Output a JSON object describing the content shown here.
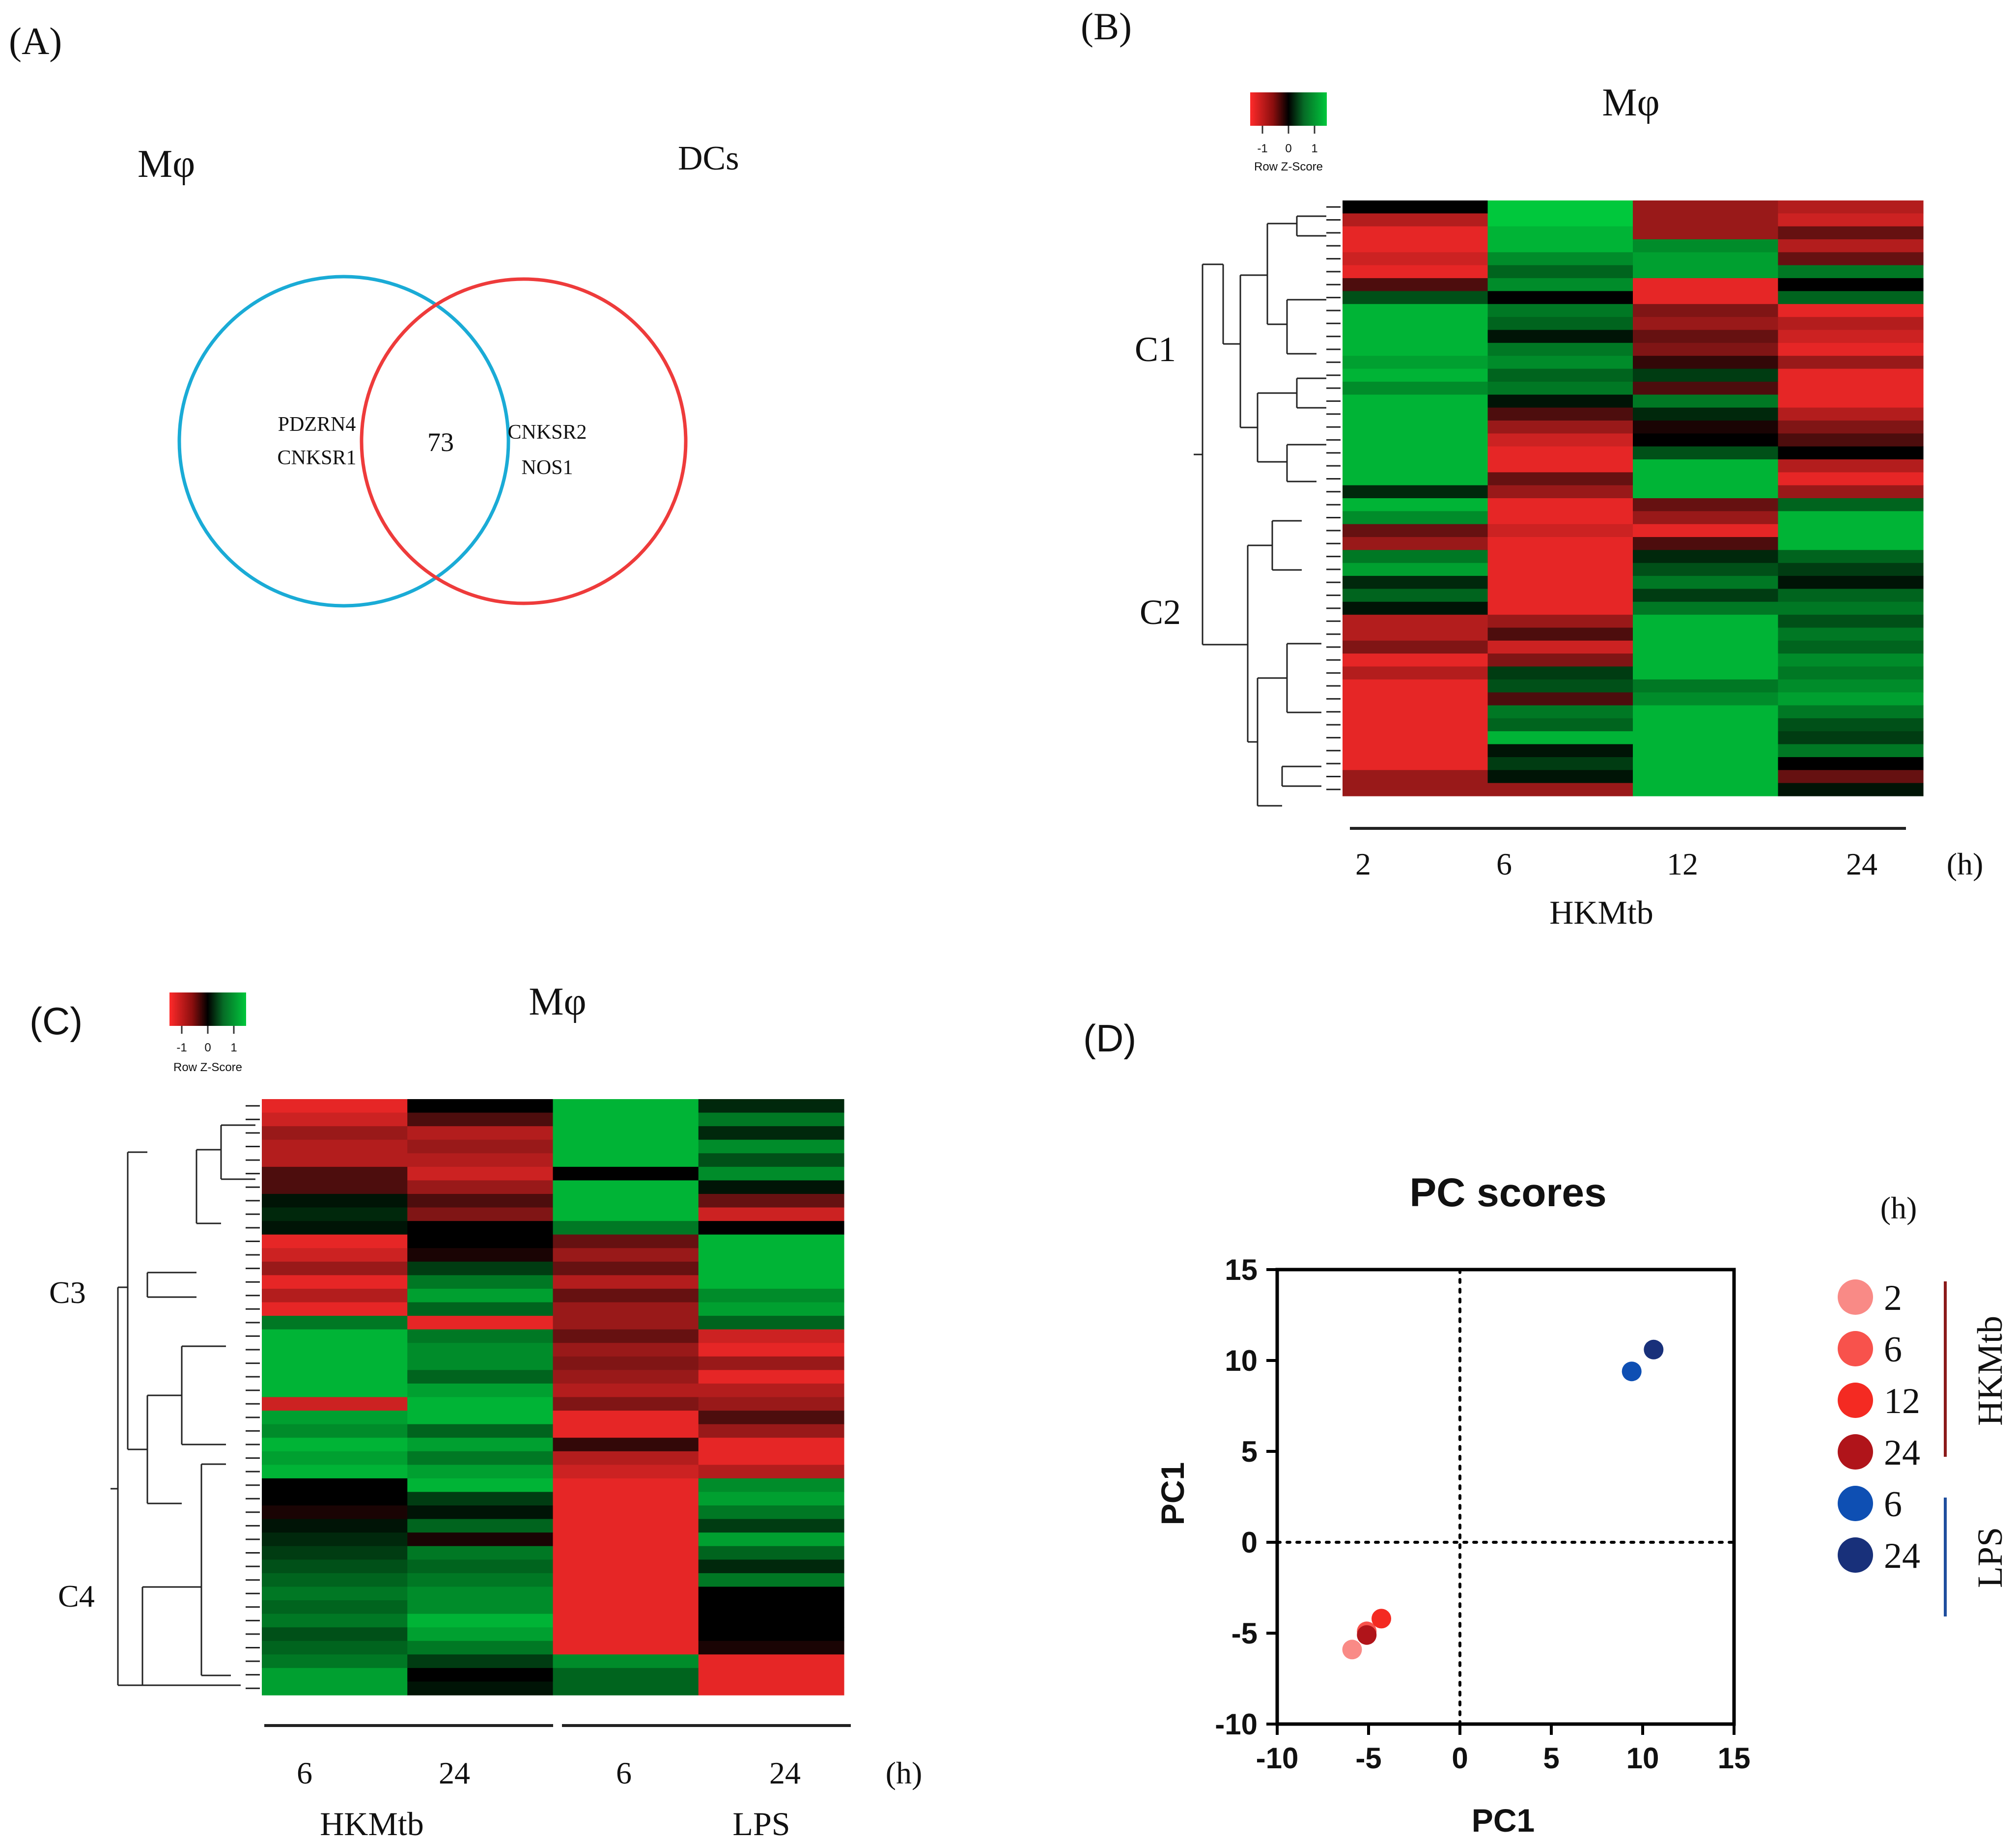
{
  "colors": {
    "low": "#ff2a2a",
    "mid": "#000000",
    "high": "#00c83c",
    "venn_left": "#1aabd6",
    "venn_right": "#ee3b3b",
    "hkmtb_bar": "#8b1a1a",
    "lps_bar": "#1f4e9e"
  },
  "panel_labels": {
    "a": "(A)",
    "b": "(B)",
    "c": "(C)",
    "d": "(D)"
  },
  "venn": {
    "left_title": "Mφ",
    "right_title": "DCs",
    "left_genes": [
      "PDZRN4",
      "CNKSR1"
    ],
    "overlap": "73",
    "right_genes": [
      "CNKSR2",
      "NOS1"
    ]
  },
  "color_key": {
    "ticks": [
      "-1",
      "0",
      "1"
    ],
    "label": "Row Z-Score"
  },
  "heatmap_b": {
    "title": "Mφ",
    "clusters": [
      "C1",
      "C2"
    ],
    "columns": [
      "2",
      "6",
      "12",
      "24"
    ],
    "unit": "(h)",
    "group": "HKMtb",
    "rows": [
      [
        0,
        1,
        -0.6,
        -0.7
      ],
      [
        -0.7,
        1,
        -0.6,
        -0.8
      ],
      [
        -0.9,
        0.9,
        -0.6,
        -0.4
      ],
      [
        -0.9,
        0.9,
        0.7,
        -0.7
      ],
      [
        -0.8,
        0.7,
        0.8,
        -0.4
      ],
      [
        -0.9,
        0.5,
        0.8,
        0.6
      ],
      [
        -0.3,
        0.7,
        -0.9,
        0
      ],
      [
        0.4,
        0,
        -0.9,
        0.5
      ],
      [
        0.9,
        0.6,
        -0.5,
        -0.9
      ],
      [
        0.9,
        0.5,
        -0.6,
        -0.7
      ],
      [
        0.9,
        0.1,
        -0.4,
        -0.8
      ],
      [
        0.9,
        0.6,
        -0.5,
        -0.9
      ],
      [
        0.8,
        0.7,
        -0.2,
        -0.6
      ],
      [
        0.9,
        0.5,
        0.3,
        -0.9
      ],
      [
        0.7,
        0.6,
        -0.3,
        -0.9
      ],
      [
        0.9,
        0.1,
        0.6,
        -0.9
      ],
      [
        0.9,
        -0.3,
        0.2,
        -0.7
      ],
      [
        0.9,
        -0.6,
        -0.1,
        -0.5
      ],
      [
        0.9,
        -0.8,
        0,
        -0.3
      ],
      [
        0.9,
        -0.9,
        0.4,
        0
      ],
      [
        0.9,
        -0.9,
        0.9,
        -0.7
      ],
      [
        0.9,
        -0.4,
        0.9,
        -0.9
      ],
      [
        0.2,
        -0.6,
        0.9,
        -0.6
      ],
      [
        0.9,
        -0.9,
        -0.4,
        0.5
      ],
      [
        0.7,
        -0.9,
        -0.6,
        0.9
      ],
      [
        -0.4,
        -0.8,
        -0.9,
        0.9
      ],
      [
        -0.6,
        -0.9,
        -0.3,
        0.9
      ],
      [
        0.6,
        -0.9,
        0.2,
        0.5
      ],
      [
        0.8,
        -0.9,
        0.4,
        0.3
      ],
      [
        0.2,
        -0.9,
        0.6,
        0.1
      ],
      [
        0.5,
        -0.9,
        0.3,
        0.5
      ],
      [
        0.1,
        -0.9,
        0.6,
        0.6
      ],
      [
        -0.7,
        -0.6,
        0.9,
        0.4
      ],
      [
        -0.7,
        -0.3,
        0.9,
        0.6
      ],
      [
        -0.5,
        -0.8,
        0.9,
        0.5
      ],
      [
        -0.9,
        -0.5,
        0.9,
        0.7
      ],
      [
        -0.7,
        0.3,
        0.9,
        0.6
      ],
      [
        -0.9,
        0.4,
        0.6,
        0.7
      ],
      [
        -0.9,
        -0.3,
        0.7,
        0.8
      ],
      [
        -0.9,
        0.6,
        0.9,
        0.6
      ],
      [
        -0.9,
        0.5,
        0.9,
        0.4
      ],
      [
        -0.9,
        0.9,
        0.9,
        0.3
      ],
      [
        -0.9,
        0.1,
        0.9,
        0.6
      ],
      [
        -0.9,
        0.3,
        0.9,
        0
      ],
      [
        -0.6,
        0.1,
        0.9,
        -0.4
      ],
      [
        -0.6,
        -0.6,
        0.9,
        0.1
      ]
    ]
  },
  "heatmap_c": {
    "title": "Mφ",
    "clusters": [
      "C3",
      "C4"
    ],
    "columns": [
      "6",
      "24",
      "6",
      "24"
    ],
    "unit": "(h)",
    "groups": [
      "HKMtb",
      "LPS"
    ],
    "rows": [
      [
        -0.9,
        0,
        0.9,
        0.2
      ],
      [
        -0.8,
        -0.3,
        0.9,
        0.6
      ],
      [
        -0.6,
        -0.7,
        0.9,
        0.2
      ],
      [
        -0.7,
        -0.6,
        0.9,
        0.7
      ],
      [
        -0.7,
        -0.7,
        0.9,
        0.4
      ],
      [
        -0.3,
        -0.8,
        0,
        0.7
      ],
      [
        -0.3,
        -0.6,
        0.9,
        0.1
      ],
      [
        0.1,
        -0.3,
        0.9,
        -0.4
      ],
      [
        0.2,
        -0.5,
        0.9,
        -0.8
      ],
      [
        0.1,
        0,
        0.6,
        0
      ],
      [
        -0.9,
        0,
        -0.4,
        0.9
      ],
      [
        -0.8,
        -0.1,
        -0.6,
        0.9
      ],
      [
        -0.6,
        0.3,
        -0.4,
        0.9
      ],
      [
        -0.9,
        0.6,
        -0.7,
        0.9
      ],
      [
        -0.7,
        0.8,
        -0.4,
        0.7
      ],
      [
        -0.9,
        0.5,
        -0.6,
        0.8
      ],
      [
        0.6,
        -0.9,
        -0.6,
        0.5
      ],
      [
        0.9,
        0.6,
        -0.4,
        -0.8
      ],
      [
        0.9,
        0.7,
        -0.6,
        -0.9
      ],
      [
        0.9,
        0.7,
        -0.5,
        -0.6
      ],
      [
        0.9,
        0.5,
        -0.6,
        -0.9
      ],
      [
        0.9,
        0.8,
        -0.7,
        -0.7
      ],
      [
        -0.8,
        0.9,
        -0.5,
        -0.6
      ],
      [
        0.8,
        0.9,
        -0.9,
        -0.3
      ],
      [
        0.7,
        0.5,
        -0.9,
        -0.6
      ],
      [
        0.9,
        0.8,
        -0.2,
        -0.9
      ],
      [
        0.8,
        0.6,
        -0.7,
        -0.9
      ],
      [
        0.9,
        0.8,
        -0.8,
        -0.7
      ],
      [
        0,
        0.9,
        -0.9,
        0.7
      ],
      [
        0,
        0.3,
        -0.9,
        0.8
      ],
      [
        -0.1,
        0.1,
        -0.9,
        0.6
      ],
      [
        0.1,
        0.5,
        -0.9,
        0.3
      ],
      [
        0.2,
        -0.1,
        -0.9,
        0.8
      ],
      [
        0.3,
        0.6,
        -0.9,
        0.5
      ],
      [
        0.4,
        0.5,
        -0.9,
        0.2
      ],
      [
        0.5,
        0.6,
        -0.9,
        0.6
      ],
      [
        0.6,
        0.7,
        -0.9,
        0
      ],
      [
        0.5,
        0.7,
        -0.9,
        0
      ],
      [
        0.6,
        0.9,
        -0.9,
        0
      ],
      [
        0.4,
        0.8,
        -0.9,
        0
      ],
      [
        0.5,
        0.6,
        -0.9,
        -0.1
      ],
      [
        0.6,
        0.3,
        0.7,
        -0.9
      ],
      [
        0.8,
        0,
        0.5,
        -0.9
      ],
      [
        0.8,
        0.1,
        0.5,
        -0.9
      ]
    ]
  },
  "chart_data": [
    {
      "type": "heatmap",
      "panel": "B",
      "title": "Mφ",
      "x": [
        "2",
        "6",
        "12",
        "24"
      ],
      "xlabel": "HKMtb",
      "x_unit": "(h)",
      "clusters": [
        "C1",
        "C2"
      ],
      "scale": {
        "min": -1,
        "max": 1,
        "label": "Row Z-Score"
      }
    },
    {
      "type": "heatmap",
      "panel": "C",
      "title": "Mφ",
      "x": [
        "6",
        "24",
        "6",
        "24"
      ],
      "groups": [
        "HKMtb",
        "LPS"
      ],
      "x_unit": "(h)",
      "clusters": [
        "C3",
        "C4"
      ],
      "scale": {
        "min": -1,
        "max": 1,
        "label": "Row Z-Score"
      }
    },
    {
      "type": "scatter",
      "panel": "D",
      "title": "PC scores",
      "xlabel": "PC1",
      "ylabel": "PC1",
      "xlim": [
        -10,
        15
      ],
      "ylim": [
        -10,
        15
      ],
      "xticks": [
        "-10",
        "-5",
        "0",
        "5",
        "10",
        "15"
      ],
      "yticks": [
        "15",
        "10",
        "5",
        "0",
        "-5",
        "-10"
      ],
      "legend_title": "(h)",
      "series": [
        {
          "group": "HKMtb",
          "name": "2",
          "color": "#f98a86",
          "x": -5.9,
          "y": -5.9
        },
        {
          "group": "HKMtb",
          "name": "6",
          "color": "#f8524c",
          "x": -5.1,
          "y": -4.9
        },
        {
          "group": "HKMtb",
          "name": "12",
          "color": "#f42a22",
          "x": -4.3,
          "y": -4.2
        },
        {
          "group": "HKMtb",
          "name": "24",
          "color": "#b0141a",
          "x": -5.1,
          "y": -5.1
        },
        {
          "group": "LPS",
          "name": "6",
          "color": "#0e4fb3",
          "x": 9.4,
          "y": 9.4
        },
        {
          "group": "LPS",
          "name": "24",
          "color": "#18307a",
          "x": 10.6,
          "y": 10.6
        }
      ],
      "groups": [
        "HKMtb",
        "LPS"
      ]
    }
  ]
}
